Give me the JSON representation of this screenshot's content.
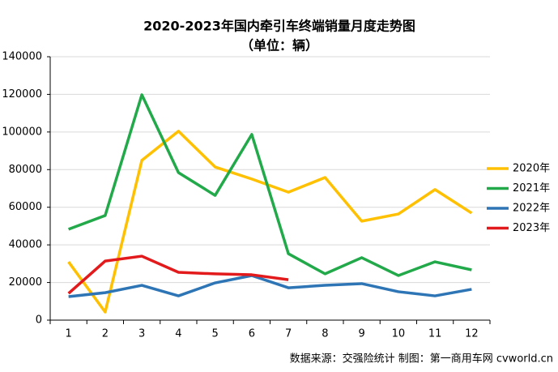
{
  "chart_data": {
    "type": "line",
    "title": "2020-2023年国内牵引车终端销量月度走势图",
    "subtitle": "（单位：辆）",
    "source": "数据来源：交强险统计   制图：第一商用车网 cvworld.cn",
    "categories": [
      "1",
      "2",
      "3",
      "4",
      "5",
      "6",
      "7",
      "8",
      "9",
      "10",
      "11",
      "12"
    ],
    "series": [
      {
        "name": "2020年",
        "color": "#ffc000",
        "values": [
          31000,
          4300,
          84900,
          100400,
          81400,
          75000,
          68000,
          75800,
          52600,
          56400,
          69400,
          56900
        ]
      },
      {
        "name": "2021年",
        "color": "#22a94a",
        "values": [
          48300,
          55600,
          119800,
          78400,
          66300,
          98700,
          35300,
          24600,
          33200,
          23700,
          31000,
          26700
        ]
      },
      {
        "name": "2022年",
        "color": "#2e75b6",
        "values": [
          12500,
          14600,
          18500,
          12900,
          19800,
          23700,
          17200,
          18500,
          19400,
          15100,
          12900,
          16400
        ]
      },
      {
        "name": "2023年",
        "color": "#e31a1c",
        "values": [
          14200,
          31400,
          34000,
          25400,
          24600,
          24100,
          21500,
          null,
          null,
          null,
          null,
          null
        ]
      }
    ],
    "ylim": [
      0,
      140000
    ],
    "yticks": [
      0,
      20000,
      40000,
      60000,
      80000,
      100000,
      120000,
      140000
    ],
    "grid": true,
    "legend": "right"
  }
}
